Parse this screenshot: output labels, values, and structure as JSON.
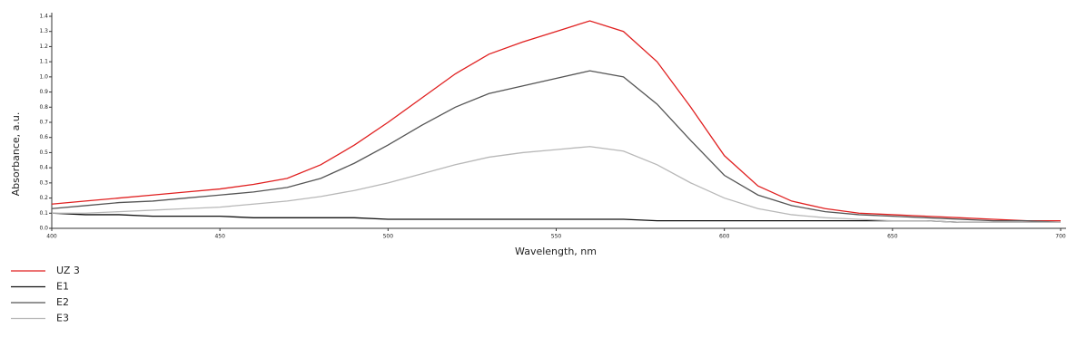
{
  "chart_data": {
    "type": "line",
    "xlabel": "Wavelength, nm",
    "ylabel": "Absorbance, a.u.",
    "x": [
      400,
      410,
      420,
      430,
      440,
      450,
      460,
      470,
      480,
      490,
      500,
      510,
      520,
      530,
      540,
      550,
      560,
      570,
      580,
      590,
      600,
      610,
      620,
      630,
      640,
      650,
      660,
      670,
      680,
      690,
      700
    ],
    "series": [
      {
        "name": "UZ 3",
        "color": "#e02020",
        "values": [
          0.16,
          0.18,
          0.2,
          0.22,
          0.24,
          0.26,
          0.29,
          0.33,
          0.42,
          0.55,
          0.7,
          0.86,
          1.02,
          1.15,
          1.23,
          1.3,
          1.37,
          1.3,
          1.1,
          0.8,
          0.48,
          0.28,
          0.18,
          0.13,
          0.1,
          0.09,
          0.08,
          0.07,
          0.06,
          0.05,
          0.05
        ]
      },
      {
        "name": "E1",
        "color": "#111111",
        "values": [
          0.1,
          0.09,
          0.09,
          0.08,
          0.08,
          0.08,
          0.07,
          0.07,
          0.07,
          0.07,
          0.06,
          0.06,
          0.06,
          0.06,
          0.06,
          0.06,
          0.06,
          0.06,
          0.05,
          0.05,
          0.05,
          0.05,
          0.05,
          0.05,
          0.05,
          0.05,
          0.05,
          0.04,
          0.04,
          0.04,
          0.04
        ]
      },
      {
        "name": "E2",
        "color": "#555555",
        "values": [
          0.13,
          0.15,
          0.17,
          0.18,
          0.2,
          0.22,
          0.24,
          0.27,
          0.33,
          0.43,
          0.55,
          0.68,
          0.8,
          0.89,
          0.94,
          0.99,
          1.04,
          1.0,
          0.82,
          0.58,
          0.35,
          0.22,
          0.15,
          0.11,
          0.09,
          0.08,
          0.07,
          0.06,
          0.05,
          0.05,
          0.04
        ]
      },
      {
        "name": "E3",
        "color": "#b8b8b8",
        "values": [
          0.1,
          0.1,
          0.11,
          0.12,
          0.13,
          0.14,
          0.16,
          0.18,
          0.21,
          0.25,
          0.3,
          0.36,
          0.42,
          0.47,
          0.5,
          0.52,
          0.54,
          0.51,
          0.42,
          0.3,
          0.2,
          0.13,
          0.09,
          0.07,
          0.06,
          0.05,
          0.05,
          0.04,
          0.04,
          0.04,
          0.04
        ]
      }
    ],
    "xlim": [
      400,
      700
    ],
    "xticks": [
      400,
      450,
      500,
      550,
      600,
      650,
      700
    ],
    "ylim": [
      0,
      1.4
    ],
    "yticks": [
      {
        "value": 0,
        "label": "0.0"
      },
      0.1,
      0.2,
      0.3,
      0.4,
      0.5,
      0.6,
      0.7,
      0.8,
      0.9,
      {
        "value": 1,
        "label": "1.0"
      },
      1.1,
      1.2,
      1.3,
      1.4
    ],
    "grid": false
  }
}
